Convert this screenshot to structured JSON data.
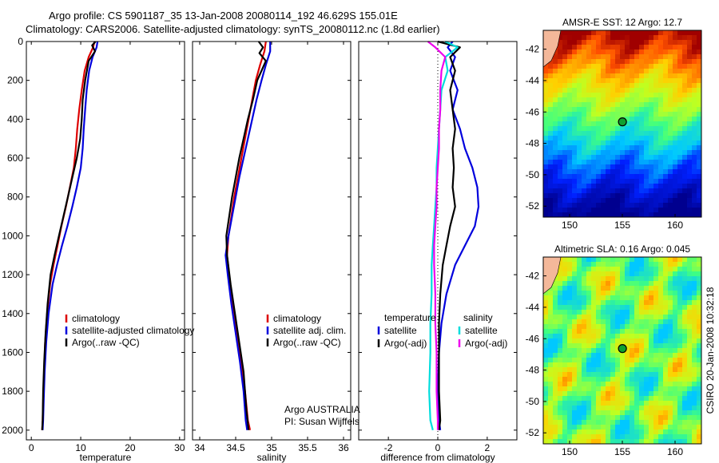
{
  "header": {
    "line1": "Argo profile: CS 5901187_35 13-Jan-2008 20080114_192 46.629S 155.01E",
    "line2": "Climatology: CARS2006. Satellite-adjusted climatology: synTS_20080112.nc (1.8d earlier)"
  },
  "colors": {
    "climatology": "#dd0000",
    "satellite": "#0000dd",
    "argo": "#000000",
    "argo_adj": "#ee00ee",
    "sat_sal": "#00dddd"
  },
  "chart_data": [
    {
      "id": "temperature",
      "type": "line",
      "xlabel": "temperature",
      "ylabel": "",
      "xlim": [
        -1,
        31
      ],
      "ylim": [
        2050,
        0
      ],
      "xticks": [
        0,
        10,
        20,
        30
      ],
      "yticks": [
        0,
        200,
        400,
        600,
        800,
        1000,
        1200,
        1400,
        1600,
        1800,
        2000
      ],
      "legend": [
        "climatology",
        "satellite-adjusted climatology",
        "Argo(..raw -QC)"
      ],
      "series": [
        {
          "name": "climatology",
          "color": "#dd0000",
          "x": [
            12.8,
            12.5,
            11.6,
            10.8,
            10.2,
            9.7,
            9.3,
            9.0,
            8.6,
            7.8,
            7.0,
            6.1,
            5.3,
            4.5,
            3.8,
            3.2,
            2.8,
            2.6,
            2.4,
            2.3,
            2.2
          ],
          "y": [
            0,
            30,
            80,
            150,
            250,
            350,
            450,
            550,
            650,
            750,
            850,
            950,
            1050,
            1150,
            1250,
            1400,
            1550,
            1700,
            1850,
            1950,
            2000
          ]
        },
        {
          "name": "satellite",
          "color": "#0000dd",
          "x": [
            13.4,
            13.2,
            12.4,
            11.7,
            11.2,
            10.9,
            10.6,
            10.4,
            10.0,
            9.2,
            8.3,
            7.3,
            6.2,
            5.2,
            4.3,
            3.5,
            3.0,
            2.7,
            2.5,
            2.4,
            2.3
          ],
          "y": [
            0,
            30,
            80,
            150,
            250,
            350,
            450,
            550,
            650,
            750,
            850,
            950,
            1050,
            1150,
            1250,
            1400,
            1550,
            1700,
            1850,
            1950,
            2000
          ]
        },
        {
          "name": "argo",
          "color": "#000000",
          "x": [
            13.0,
            12.3,
            12.9,
            11.6,
            10.9,
            10.4,
            10.2,
            9.9,
            9.2,
            8.3,
            7.4,
            6.5,
            5.6,
            4.7,
            3.9,
            3.3,
            2.9,
            2.6,
            2.4,
            2.3,
            2.2
          ],
          "y": [
            0,
            20,
            50,
            100,
            200,
            300,
            400,
            500,
            600,
            700,
            800,
            900,
            1000,
            1100,
            1200,
            1350,
            1500,
            1650,
            1800,
            1950,
            2000
          ]
        }
      ]
    },
    {
      "id": "salinity",
      "type": "line",
      "xlabel": "salinity",
      "xlim": [
        33.9,
        36.1
      ],
      "ylim": [
        2050,
        0
      ],
      "xticks": [
        34,
        34.5,
        35,
        35.5,
        36
      ],
      "legend": [
        "climatology",
        "satellite adj. clim.",
        "Argo(..raw -QC)"
      ],
      "annotation": [
        "Argo AUSTRALIA",
        "PI: Susan Wijffels"
      ],
      "series": [
        {
          "name": "climatology",
          "color": "#dd0000",
          "x": [
            34.92,
            34.9,
            34.84,
            34.78,
            34.73,
            34.68,
            34.63,
            34.58,
            34.53,
            34.48,
            34.44,
            34.4,
            34.38,
            34.41,
            34.46,
            34.52,
            34.58,
            34.63,
            34.67,
            34.7
          ],
          "y": [
            0,
            50,
            120,
            200,
            300,
            400,
            500,
            600,
            700,
            800,
            900,
            1000,
            1100,
            1200,
            1350,
            1500,
            1650,
            1800,
            1950,
            2000
          ]
        },
        {
          "name": "satellite",
          "color": "#0000dd",
          "x": [
            34.98,
            34.98,
            34.92,
            34.86,
            34.79,
            34.73,
            34.67,
            34.61,
            34.55,
            34.5,
            34.45,
            34.4,
            34.36,
            34.39,
            34.44,
            34.5,
            34.56,
            34.61,
            34.64,
            34.66
          ],
          "y": [
            0,
            50,
            120,
            200,
            300,
            400,
            500,
            600,
            700,
            800,
            900,
            1000,
            1100,
            1200,
            1350,
            1500,
            1650,
            1800,
            1950,
            2000
          ]
        },
        {
          "name": "argo",
          "color": "#000000",
          "x": [
            34.82,
            34.88,
            34.83,
            34.92,
            34.8,
            34.74,
            34.67,
            34.61,
            34.55,
            34.5,
            34.45,
            34.41,
            34.37,
            34.38,
            34.43,
            34.49,
            34.55,
            34.61,
            34.65,
            34.68
          ],
          "y": [
            0,
            30,
            60,
            100,
            200,
            300,
            400,
            500,
            600,
            700,
            800,
            900,
            1000,
            1100,
            1250,
            1400,
            1550,
            1700,
            1900,
            2000
          ]
        }
      ]
    },
    {
      "id": "difference",
      "type": "line",
      "xlabel": "difference from climatology",
      "xlim": [
        -3.2,
        3.2
      ],
      "ylim": [
        2050,
        0
      ],
      "xticks": [
        -2,
        0,
        2
      ],
      "legend_left_title": "temperature",
      "legend_left": [
        "satellite",
        "Argo(-adj)"
      ],
      "legend_right_title": "salinity",
      "legend_right": [
        "satellite",
        "Argo(-adj)"
      ],
      "series": [
        {
          "name": "temperature satellite",
          "color": "#0000dd",
          "x": [
            0.6,
            0.4,
            0.7,
            0.5,
            0.8,
            0.6,
            0.9,
            1.1,
            1.4,
            1.6,
            1.65,
            1.5,
            1.1,
            0.7,
            0.35,
            0.15,
            0.05,
            0.0,
            0.05,
            0.1
          ],
          "y": [
            0,
            30,
            80,
            150,
            250,
            350,
            450,
            550,
            650,
            750,
            850,
            950,
            1050,
            1150,
            1300,
            1450,
            1600,
            1800,
            1950,
            2000
          ]
        },
        {
          "name": "temperature argo",
          "color": "#000000",
          "x": [
            0.0,
            0.9,
            0.5,
            0.7,
            0.5,
            0.6,
            0.7,
            0.6,
            0.65,
            0.6,
            0.7,
            0.5,
            0.35,
            0.2,
            0.1,
            0.05,
            0.05,
            0.05,
            0.1,
            0.05
          ],
          "y": [
            0,
            30,
            80,
            150,
            250,
            350,
            450,
            550,
            650,
            750,
            850,
            950,
            1050,
            1150,
            1300,
            1450,
            1600,
            1800,
            1950,
            2000
          ]
        },
        {
          "name": "salinity satellite",
          "color": "#00dddd",
          "x": [
            0.3,
            0.8,
            0.3,
            0.4,
            0.15,
            0.1,
            0.05,
            0.0,
            -0.05,
            -0.05,
            -0.1,
            -0.15,
            -0.2,
            -0.25,
            -0.25,
            -0.3,
            -0.3,
            -0.35,
            -0.3,
            -0.2
          ],
          "y": [
            0,
            30,
            80,
            150,
            250,
            350,
            450,
            550,
            650,
            750,
            850,
            950,
            1050,
            1150,
            1300,
            1450,
            1600,
            1800,
            1950,
            2000
          ]
        },
        {
          "name": "salinity argo",
          "color": "#ee00ee",
          "x": [
            -0.4,
            -0.1,
            0.3,
            0.15,
            0.1,
            0.1,
            0.05,
            0.05,
            0.0,
            -0.05,
            -0.05,
            -0.1,
            -0.15,
            -0.15,
            -0.1,
            -0.1,
            -0.05,
            -0.05,
            0.0,
            0.0
          ],
          "y": [
            0,
            30,
            80,
            150,
            250,
            350,
            450,
            550,
            650,
            750,
            850,
            950,
            1050,
            1150,
            1300,
            1450,
            1600,
            1800,
            1950,
            2000
          ]
        }
      ]
    },
    {
      "id": "sst-map",
      "type": "heatmap",
      "title": "AMSR-E SST: 12 Argo: 12.7",
      "xlim": [
        147.5,
        162.5
      ],
      "ylim": [
        -52.7,
        -40.8
      ],
      "xticks": [
        150,
        155,
        160
      ],
      "yticks": [
        -42,
        -44,
        -46,
        -48,
        -50,
        -52
      ],
      "argo_position": [
        155.01,
        -46.629
      ]
    },
    {
      "id": "sla-map",
      "type": "heatmap",
      "title": "Altimetric SLA: 0.16 Argo: 0.045",
      "xlim": [
        147.5,
        162.5
      ],
      "ylim": [
        -52.7,
        -40.8
      ],
      "xticks": [
        150,
        155,
        160
      ],
      "yticks": [
        -42,
        -44,
        -46,
        -48,
        -50,
        -52
      ],
      "argo_position": [
        155.01,
        -46.629
      ],
      "side_label": "CSIRO 20-Jan-2008 10:32:18"
    }
  ]
}
